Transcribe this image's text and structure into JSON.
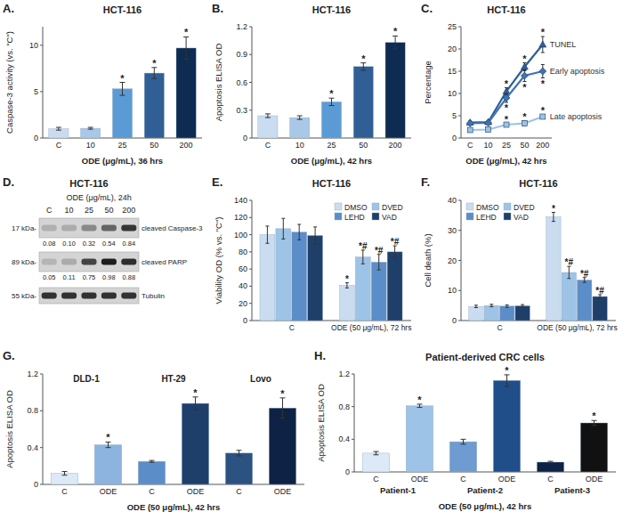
{
  "chart_data": [
    {
      "panel": "A.",
      "type": "bar",
      "title": "HCT-116",
      "y_label": "Caspase-3 activity (vs. \"C\")",
      "x_label": "ODE (μg/mL), 36 hrs",
      "categories": [
        "C",
        "10",
        "25",
        "50",
        "200"
      ],
      "values": [
        1,
        1.05,
        5.3,
        7,
        9.7
      ],
      "errors": [
        0.15,
        0.1,
        0.7,
        0.6,
        1.2
      ],
      "significance": [
        null,
        null,
        "*",
        "*",
        "*"
      ],
      "colors": [
        "#c9dcf0",
        "#a9c8e8",
        "#5b9bd5",
        "#2f5f95",
        "#0e2b52"
      ],
      "ylim": [
        0,
        12
      ],
      "yticks": [
        0,
        5,
        10
      ]
    },
    {
      "panel": "B.",
      "type": "bar",
      "title": "HCT-116",
      "y_label": "Apoptosis ELISA OD",
      "x_label": "ODE (μg/mL), 42 hrs",
      "categories": [
        "C",
        "10",
        "25",
        "50",
        "200"
      ],
      "values": [
        0.24,
        0.22,
        0.39,
        0.77,
        1.03
      ],
      "errors": [
        0.02,
        0.02,
        0.04,
        0.04,
        0.07
      ],
      "significance": [
        null,
        null,
        "*",
        "*",
        "*"
      ],
      "colors": [
        "#c9dcf0",
        "#a9c8e8",
        "#5b9bd5",
        "#2f5f95",
        "#0e2b52"
      ],
      "ylim": [
        0,
        1.2
      ],
      "yticks": [
        0,
        0.3,
        0.6,
        0.9,
        1.2
      ]
    },
    {
      "panel": "C.",
      "type": "line",
      "title": "HCT-116",
      "y_label": "Percentage",
      "x_label": "ODE (μg/mL), 42 hrs",
      "categories": [
        "C",
        "10",
        "25",
        "50",
        "200"
      ],
      "series": [
        {
          "name": "TUNEL",
          "color": "#2f5f95",
          "marker": "triangle",
          "values": [
            3.5,
            3.6,
            10.5,
            16,
            21
          ],
          "errors": [
            0.3,
            0.3,
            0.8,
            0.9,
            1.8
          ],
          "significance": [
            null,
            null,
            "*",
            "*",
            "*"
          ]
        },
        {
          "name": "Early apoptosis",
          "color": "#3f74b3",
          "marker": "diamond",
          "values": [
            3.3,
            3.4,
            9,
            14,
            15
          ],
          "errors": [
            0.2,
            0.2,
            1,
            1.3,
            1.5
          ],
          "significance": [
            null,
            null,
            "*",
            "*",
            "*"
          ]
        },
        {
          "name": "Late apoptosis",
          "color": "#9cc3e6",
          "marker": "square",
          "values": [
            1.8,
            1.9,
            3,
            3.3,
            4.8
          ],
          "errors": [
            0.2,
            0.2,
            0.3,
            0.5,
            0.5
          ],
          "significance": [
            null,
            null,
            "*",
            "*",
            "*"
          ]
        }
      ],
      "ylim": [
        0,
        25
      ],
      "yticks": [
        0,
        5,
        10,
        15,
        20,
        25
      ]
    },
    {
      "panel": "D.",
      "type": "blot",
      "title": "HCT-116",
      "x_label": "ODE (μg/mL), 24h",
      "data_labels": true,
      "categories": [
        "C",
        "10",
        "25",
        "50",
        "200"
      ],
      "series": [
        {
          "name": "cleaved Caspase-3",
          "size_label": "17 kDa-",
          "values": [
            0.08,
            0.1,
            0.32,
            0.54,
            0.84
          ],
          "value_labels": [
            "0.08",
            "0.10",
            "0.32",
            "0.54",
            "0.84"
          ]
        },
        {
          "name": "cleaved PARP",
          "size_label": "89 kDa-",
          "values": [
            0.05,
            0.11,
            0.75,
            0.98,
            0.88
          ],
          "value_labels": [
            "0.05",
            "0.11",
            "0.75",
            "0.98",
            "0.88"
          ]
        },
        {
          "name": "Tubulin",
          "size_label": "55 kDa-"
        }
      ]
    },
    {
      "panel": "E.",
      "type": "bar",
      "title": "HCT-116",
      "y_label": "Viability OD (% vs. \"C\")",
      "legend": "top-right",
      "categories": [
        "C",
        "ODE (50 μg/mL), 72 hrs"
      ],
      "series": [
        {
          "name": "DMSO",
          "color": "#c9dcf0",
          "values": [
            100,
            41
          ],
          "errors": [
            10,
            3
          ],
          "significance": [
            null,
            "*"
          ]
        },
        {
          "name": "DVED",
          "color": "#9dc3e6",
          "values": [
            107,
            74
          ],
          "errors": [
            12,
            8
          ],
          "significance": [
            null,
            "*#"
          ]
        },
        {
          "name": "LEHD",
          "color": "#5b8ec9",
          "values": [
            103,
            68
          ],
          "errors": [
            9,
            9
          ],
          "significance": [
            null,
            "*#"
          ]
        },
        {
          "name": "VAD",
          "color": "#1f3f6b",
          "values": [
            99,
            80
          ],
          "errors": [
            10,
            7
          ],
          "significance": [
            null,
            "*#"
          ]
        }
      ],
      "ylim": [
        0,
        140
      ],
      "yticks": [
        0,
        20,
        40,
        60,
        80,
        100,
        120,
        140
      ]
    },
    {
      "panel": "F.",
      "type": "bar",
      "title": "HCT-116",
      "y_label": "Cell death (%)",
      "legend": "top-left",
      "categories": [
        "C",
        "ODE (50 μg/mL), 72 hrs"
      ],
      "series": [
        {
          "name": "DMSO",
          "color": "#c9dcf0",
          "values": [
            4.7,
            34.5
          ],
          "errors": [
            0.4,
            1.5
          ],
          "significance": [
            null,
            "*"
          ]
        },
        {
          "name": "DVED",
          "color": "#9dc3e6",
          "values": [
            5,
            16
          ],
          "errors": [
            0.4,
            2
          ],
          "significance": [
            null,
            "*#"
          ]
        },
        {
          "name": "LEHD",
          "color": "#5b8ec9",
          "values": [
            4.8,
            13.5
          ],
          "errors": [
            0.4,
            0.8
          ],
          "significance": [
            null,
            "*#"
          ]
        },
        {
          "name": "VAD",
          "color": "#1f3f6b",
          "values": [
            4.9,
            8
          ],
          "errors": [
            0.4,
            0.6
          ],
          "significance": [
            null,
            "*#"
          ]
        }
      ],
      "ylim": [
        0,
        40
      ],
      "yticks": [
        0,
        10,
        20,
        30,
        40
      ]
    },
    {
      "panel": "G.",
      "type": "bar",
      "y_label": "Apoptosis ELISA OD",
      "x_label": "ODE (50 μg/mL), 42 hrs",
      "group_titles": [
        "DLD-1",
        "HT-29",
        "Lovo"
      ],
      "categories": [
        "C",
        "ODE",
        "C",
        "ODE",
        "C",
        "ODE"
      ],
      "values": [
        0.12,
        0.43,
        0.25,
        0.88,
        0.34,
        0.83
      ],
      "errors": [
        0.02,
        0.03,
        0.01,
        0.07,
        0.03,
        0.11
      ],
      "significance": [
        null,
        "*",
        null,
        "*",
        null,
        "*"
      ],
      "colors": [
        "#dce9f6",
        "#8db3df",
        "#5b8ec9",
        "#1f3f6b",
        "#2c5282",
        "#0d2244"
      ],
      "ylim": [
        0,
        1.2
      ],
      "yticks": [
        0,
        0.4,
        0.8,
        1.2
      ]
    },
    {
      "panel": "H.",
      "type": "bar",
      "title": "Patient-derived CRC cells",
      "y_label": "Apoptosis ELISA OD",
      "x_label": "ODE (50 μg/mL), 42 hrs",
      "groups": [
        "Patient-1",
        "Patient-2",
        "Patient-3"
      ],
      "categories": [
        "C",
        "ODE",
        "C",
        "ODE",
        "C",
        "ODE"
      ],
      "values": [
        0.23,
        0.81,
        0.37,
        1.12,
        0.12,
        0.6
      ],
      "errors": [
        0.02,
        0.02,
        0.03,
        0.07,
        0.01,
        0.03
      ],
      "significance": [
        null,
        "*",
        null,
        "*",
        null,
        "*"
      ],
      "colors": [
        "#dce9f6",
        "#9dc3e6",
        "#6e9bd0",
        "#1f4e89",
        "#0d2244",
        "#111111"
      ],
      "ylim": [
        0,
        1.2
      ],
      "yticks": [
        0,
        0.4,
        0.8,
        1.2
      ]
    }
  ]
}
